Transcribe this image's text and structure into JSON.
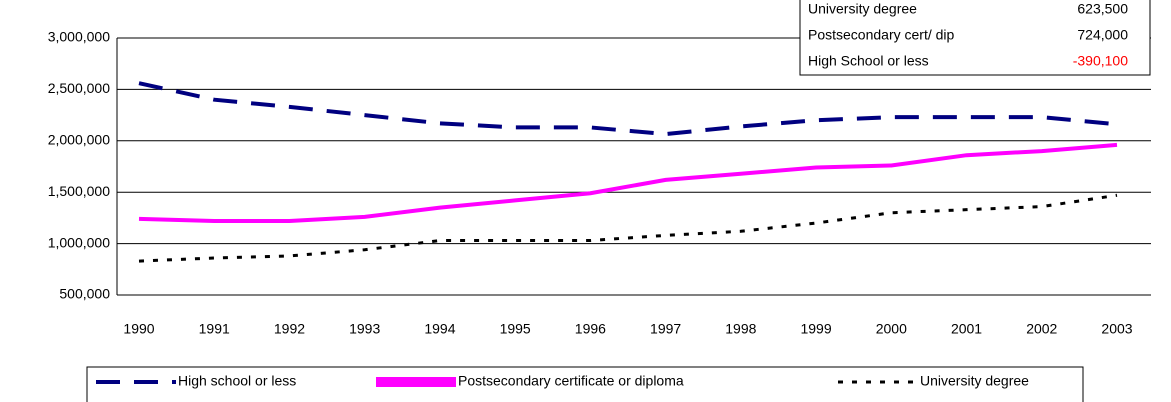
{
  "chart_data": {
    "type": "line",
    "categories": [
      "1990",
      "1991",
      "1992",
      "1993",
      "1994",
      "1995",
      "1996",
      "1997",
      "1998",
      "1999",
      "2000",
      "2001",
      "2002",
      "2003"
    ],
    "series": [
      {
        "name": "High school or less",
        "color": "#000080",
        "dash": "dashed",
        "values": [
          2560000,
          2400000,
          2330000,
          2250000,
          2170000,
          2130000,
          2130000,
          2065000,
          2140000,
          2200000,
          2230000,
          2230000,
          2230000,
          2160000
        ]
      },
      {
        "name": "Postsecondary certificate or diploma",
        "color": "#ff00ff",
        "dash": "solid",
        "values": [
          1240000,
          1220000,
          1220000,
          1260000,
          1350000,
          1420000,
          1490000,
          1620000,
          1680000,
          1740000,
          1760000,
          1860000,
          1900000,
          1960000
        ]
      },
      {
        "name": "University degree",
        "color": "#000000",
        "dash": "dotted",
        "values": [
          830000,
          860000,
          880000,
          940000,
          1030000,
          1030000,
          1030000,
          1080000,
          1120000,
          1200000,
          1300000,
          1330000,
          1360000,
          1470000
        ]
      }
    ],
    "ylim": [
      500000,
      3000000
    ],
    "yticks": [
      {
        "value": 500000,
        "label": "500,000"
      },
      {
        "value": 1000000,
        "label": "1,000,000"
      },
      {
        "value": 1500000,
        "label": "1,500,000"
      },
      {
        "value": 2000000,
        "label": "2,000,000"
      },
      {
        "value": 2500000,
        "label": "2,500,000"
      },
      {
        "value": 3000000,
        "label": "3,000,000"
      }
    ],
    "grid": true,
    "legend": "bottom",
    "annotation_table": {
      "rows": [
        {
          "label": "University degree",
          "value": "623,500",
          "color": "#000000"
        },
        {
          "label": "Postsecondary cert/ dip",
          "value": "724,000",
          "color": "#000000"
        },
        {
          "label": "High School or less",
          "value": "-390,100",
          "color": "#ff0000"
        }
      ]
    }
  }
}
